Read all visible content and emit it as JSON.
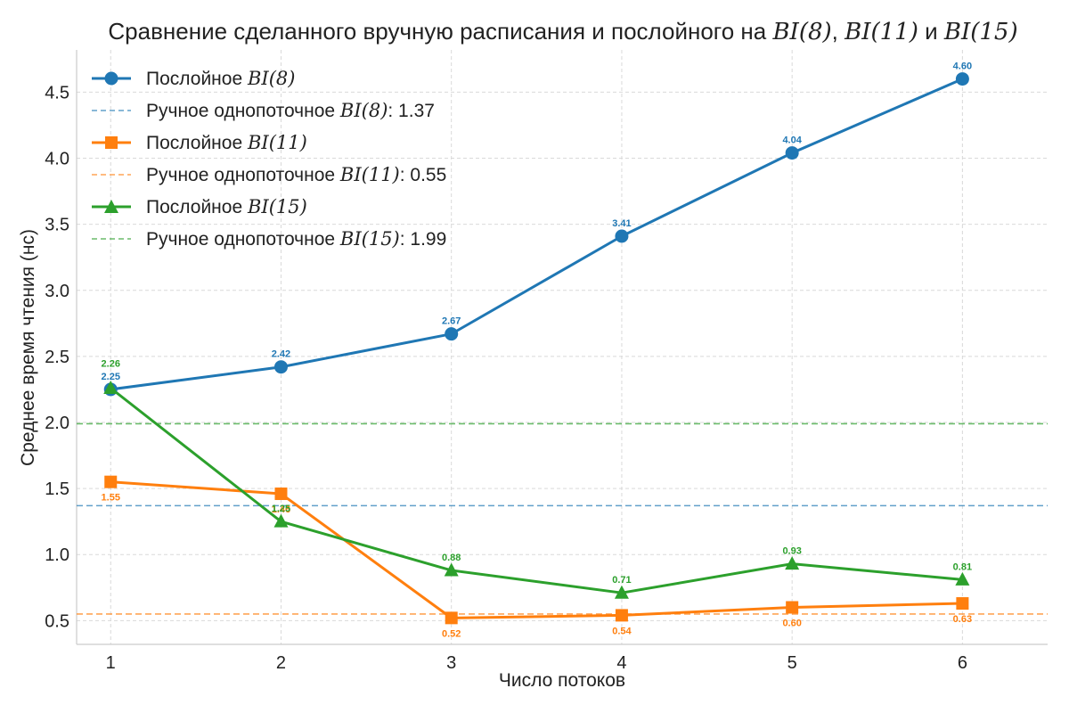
{
  "chart_data": {
    "type": "line",
    "title_parts": [
      "Сравнение сделанного вручную расписания и послойного на ",
      "BI(8)",
      ", ",
      "BI(11)",
      " и ",
      "BI(15)"
    ],
    "xlabel": "Число потоков",
    "ylabel": "Среднее время чтения (нс)",
    "x": [
      1,
      2,
      3,
      4,
      5,
      6
    ],
    "xlim": [
      0.8,
      6.5
    ],
    "ylim": [
      0.32,
      4.82
    ],
    "yticks": [
      0.5,
      1.0,
      1.5,
      2.0,
      2.5,
      3.0,
      3.5,
      4.0,
      4.5
    ],
    "ytick_labels": [
      "0.5",
      "1.0",
      "1.5",
      "2.0",
      "2.5",
      "3.0",
      "3.5",
      "4.0",
      "4.5"
    ],
    "xtick_labels": [
      "1",
      "2",
      "3",
      "4",
      "5",
      "6"
    ],
    "grid": true,
    "legend_position": "top-left",
    "series": [
      {
        "name_prefix": "Послойное ",
        "name_math": "BI(8)",
        "color": "#1f77b4",
        "marker": "circle",
        "values": [
          2.25,
          2.42,
          2.67,
          3.41,
          4.04,
          4.6
        ],
        "labels": [
          "2.25",
          "2.42",
          "2.67",
          "3.41",
          "4.04",
          "4.60"
        ],
        "label_placement": "above"
      },
      {
        "name_prefix": "Послойное ",
        "name_math": "BI(11)",
        "color": "#ff7f0e",
        "marker": "square",
        "values": [
          1.55,
          1.46,
          0.52,
          0.54,
          0.6,
          0.63
        ],
        "labels": [
          "1.55",
          "1.46",
          "0.52",
          "0.54",
          "0.60",
          "0.63"
        ],
        "label_placement": "below"
      },
      {
        "name_prefix": "Послойное ",
        "name_math": "BI(15)",
        "color": "#2ca02c",
        "marker": "triangle",
        "values": [
          2.26,
          1.25,
          0.88,
          0.71,
          0.93,
          0.81
        ],
        "labels": [
          "2.26",
          "1.25",
          "0.88",
          "0.71",
          "0.93",
          "0.81"
        ],
        "label_placement": "above"
      }
    ],
    "reference_lines": [
      {
        "name_prefix": "Ручное однопоточное ",
        "name_math": "BI(8)",
        "name_suffix": ": 1.37",
        "value": 1.37,
        "color": "#1f77b4"
      },
      {
        "name_prefix": "Ручное однопоточное ",
        "name_math": "BI(11)",
        "name_suffix": ": 0.55",
        "value": 0.55,
        "color": "#ff7f0e"
      },
      {
        "name_prefix": "Ручное однопоточное ",
        "name_math": "BI(15)",
        "name_suffix": ": 1.99",
        "value": 1.99,
        "color": "#2ca02c"
      }
    ]
  }
}
